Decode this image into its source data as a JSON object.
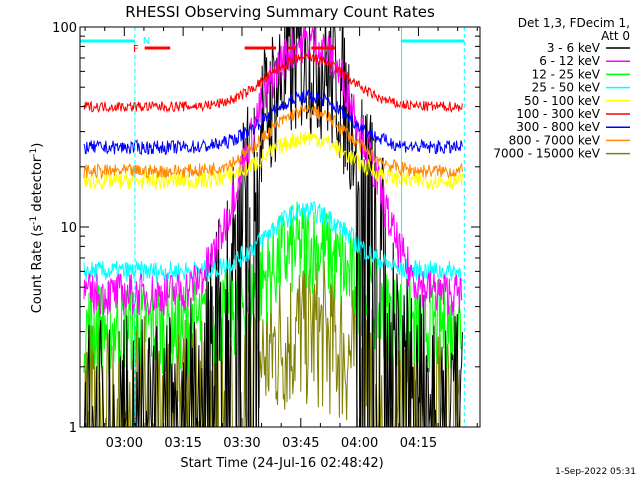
{
  "chart_data": {
    "type": "line",
    "title": "RHESSI Observing Summary Count Rates",
    "xlabel": "Start Time (24-Jul-16 02:48:42)",
    "ylabel": "Count Rate (s",
    "ylabel_exp": "-1",
    "ylabel_tail": " detector",
    "ylabel_end": ")",
    "xlim": [
      0,
      102
    ],
    "ylim": [
      1,
      100
    ],
    "y_scale": "log",
    "x_ticks": [
      {
        "label": "03:00",
        "v": 11.3
      },
      {
        "label": "03:15",
        "v": 26.3
      },
      {
        "label": "03:30",
        "v": 41.3
      },
      {
        "label": "03:45",
        "v": 56.3
      },
      {
        "label": "04:00",
        "v": 71.3
      },
      {
        "label": "04:15",
        "v": 86.3
      }
    ],
    "y_ticks": [
      {
        "label": "1",
        "v": 1
      },
      {
        "label": "10",
        "v": 10
      },
      {
        "label": "100",
        "v": 100
      }
    ],
    "legend_header": [
      "Det 1,3, FDecim 1,",
      "Att 0"
    ],
    "legend_position": "right",
    "footer": "1-Sep-2022 05:31",
    "flags": {
      "night": [
        {
          "x0": 0,
          "x1": 14
        },
        {
          "x0": 82,
          "x1": 98
        }
      ],
      "flare": [
        {
          "x0": 16.5,
          "x1": 23
        },
        {
          "x0": 42,
          "x1": 50
        },
        {
          "x0": 53,
          "x1": 55
        },
        {
          "x0": 59,
          "x1": 65
        }
      ],
      "labels": [
        {
          "text": "F",
          "x": 13.5,
          "color": "#ff0000"
        },
        {
          "text": "N",
          "x": 16,
          "color": "#00ffff"
        }
      ]
    },
    "series": [
      {
        "name": "3 - 6 keV",
        "color": "#000000",
        "base": 1.5,
        "peak": 70,
        "jit": 0.9,
        "drop": true
      },
      {
        "name": "6 - 12 keV",
        "color": "#ff00ff",
        "base": 4.6,
        "peak": 85,
        "jit": 0.25,
        "drop": false
      },
      {
        "name": "12 - 25 keV",
        "color": "#00ff00",
        "base": 3.2,
        "peak": 8,
        "jit": 0.55,
        "drop": false
      },
      {
        "name": "25 - 50 keV",
        "color": "#00ffff",
        "base": 6.0,
        "peak": 12,
        "jit": 0.12,
        "drop": false
      },
      {
        "name": "50 - 100 keV",
        "color": "#ffff00",
        "base": 17,
        "peak": 28,
        "jit": 0.1,
        "drop": false
      },
      {
        "name": "100 - 300 keV",
        "color": "#ff0000",
        "base": 40,
        "peak": 70,
        "jit": 0.06,
        "drop": false
      },
      {
        "name": "300 - 800 keV",
        "color": "#0000ff",
        "base": 25,
        "peak": 45,
        "jit": 0.08,
        "drop": false
      },
      {
        "name": "800 - 7000 keV",
        "color": "#ff8800",
        "base": 19,
        "peak": 38,
        "jit": 0.08,
        "drop": false
      },
      {
        "name": "7000 - 15000 keV",
        "color": "#808000",
        "base": 1.5,
        "peak": 3,
        "jit": 0.9,
        "drop": true
      }
    ]
  }
}
